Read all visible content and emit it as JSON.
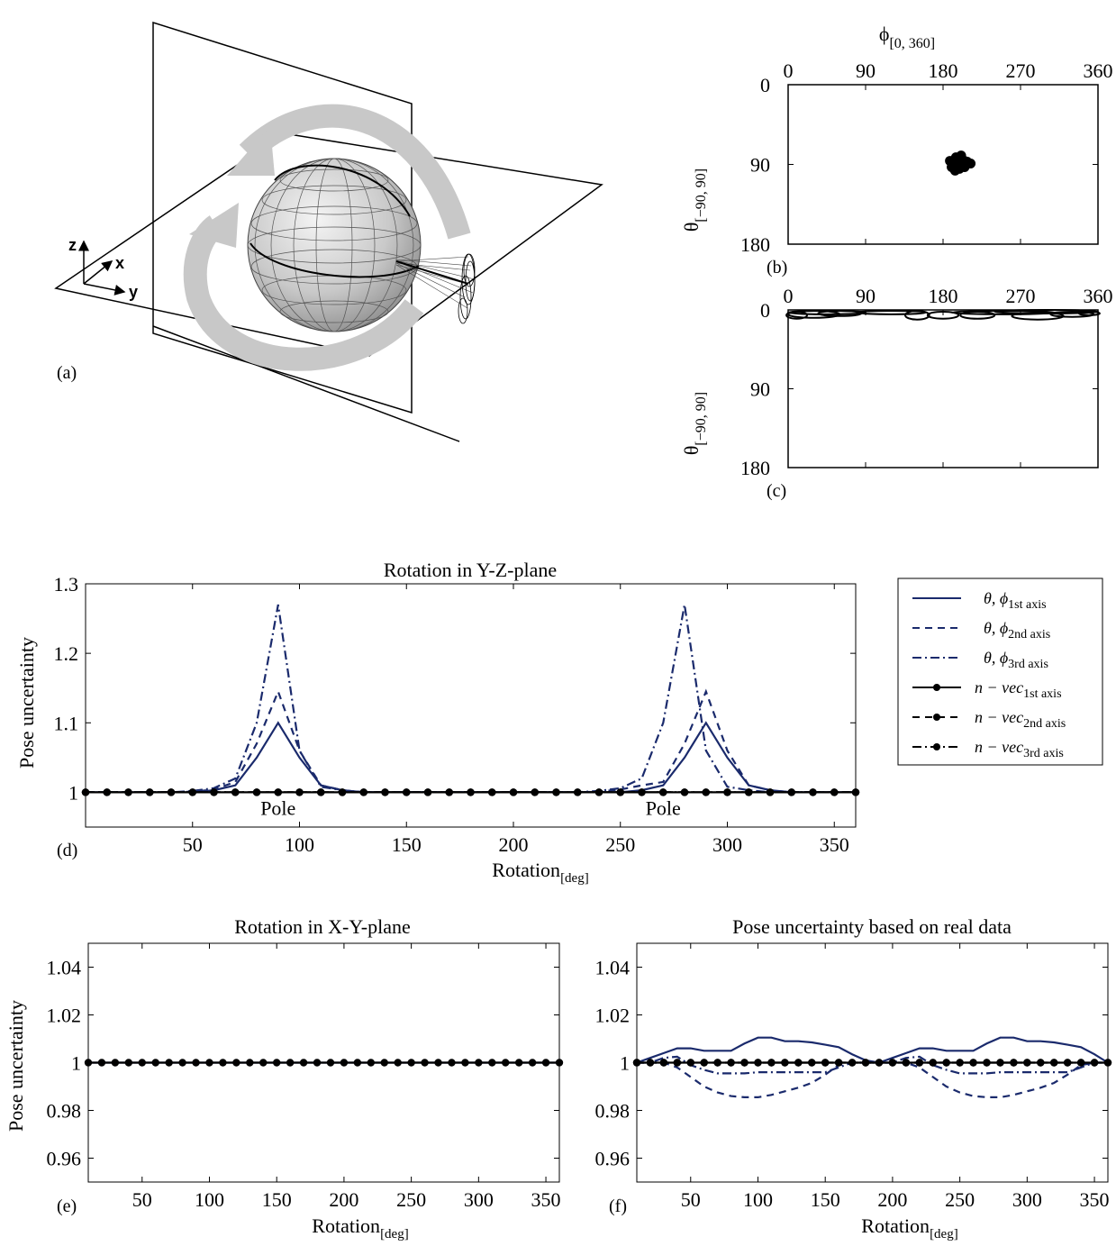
{
  "panel_labels": {
    "a": "(a)",
    "b": "(b)",
    "c": "(c)",
    "d": "(d)",
    "e": "(e)",
    "f": "(f)"
  },
  "illustration": {
    "axis_x": "x",
    "axis_y": "y",
    "axis_z": "z"
  },
  "colors": {
    "navy": "#1a2a6c",
    "black": "#000000",
    "arrow_gray": "#c8c8c8",
    "sphere_gray": "#cfcfcf"
  },
  "chart_data": [
    {
      "id": "b",
      "type": "scatter",
      "xlabel": "ϕ",
      "xlabel_sub": "[0, 360]",
      "ylabel": "θ",
      "ylabel_sub": "[−90, 90]",
      "xlim": [
        0,
        360
      ],
      "ylim": [
        0,
        180
      ],
      "y_inverted": true,
      "xticks": [
        "0",
        "90",
        "180",
        "270",
        "360"
      ],
      "yticks": [
        "0",
        "90",
        "180"
      ],
      "points": [
        [
          195,
          82
        ],
        [
          200,
          84
        ],
        [
          205,
          86
        ],
        [
          198,
          88
        ],
        [
          192,
          88
        ],
        [
          203,
          90
        ],
        [
          208,
          87
        ],
        [
          196,
          92
        ],
        [
          190,
          93
        ],
        [
          212,
          89
        ],
        [
          199,
          95
        ],
        [
          194,
          97
        ],
        [
          205,
          93
        ],
        [
          201,
          80
        ],
        [
          188,
          86
        ]
      ]
    },
    {
      "id": "c",
      "type": "scatter",
      "ylabel": "θ",
      "ylabel_sub": "[−90, 90]",
      "xlim": [
        0,
        360
      ],
      "ylim": [
        0,
        180
      ],
      "y_inverted": true,
      "xticks": [
        "0",
        "90",
        "180",
        "270",
        "360"
      ],
      "yticks": [
        "0",
        "90",
        "180"
      ],
      "ellipses": [
        [
          30,
          5,
          30,
          4
        ],
        [
          60,
          4,
          25,
          3
        ],
        [
          10,
          6,
          12,
          4
        ],
        [
          150,
          6,
          14,
          5
        ],
        [
          180,
          6,
          18,
          4
        ],
        [
          220,
          6,
          20,
          4
        ],
        [
          290,
          7,
          30,
          4
        ],
        [
          330,
          5,
          25,
          3
        ],
        [
          350,
          4,
          12,
          2
        ],
        [
          120,
          3,
          40,
          2
        ],
        [
          250,
          3,
          60,
          2
        ],
        [
          45,
          3,
          45,
          2
        ],
        [
          300,
          2,
          60,
          2
        ]
      ]
    },
    {
      "id": "d",
      "type": "line",
      "title": "Rotation in Y-Z-plane",
      "xlabel": "Rotation",
      "xlabel_sub": "[deg]",
      "ylabel": "Pose uncertainty",
      "xlim": [
        0,
        360
      ],
      "ylim": [
        0.95,
        1.3
      ],
      "xticks": [
        50,
        100,
        150,
        200,
        250,
        300,
        350
      ],
      "yticks": [
        {
          "v": 1,
          "t": "1"
        },
        {
          "v": 1.1,
          "t": "1.1"
        },
        {
          "v": 1.2,
          "t": "1.2"
        },
        {
          "v": 1.3,
          "t": "1.3"
        }
      ],
      "annotations": [
        {
          "x": 90,
          "y": 0.975,
          "text": "Pole"
        },
        {
          "x": 270,
          "y": 0.975,
          "text": "Pole"
        }
      ],
      "x": [
        0,
        10,
        20,
        30,
        40,
        50,
        60,
        70,
        80,
        90,
        100,
        110,
        120,
        130,
        140,
        150,
        160,
        170,
        180,
        190,
        200,
        210,
        220,
        230,
        240,
        250,
        260,
        270,
        280,
        290,
        300,
        310,
        320,
        330,
        340,
        350,
        360
      ],
      "series": [
        {
          "name": "θ, ϕ",
          "name_sub": "1st axis",
          "style": "solid",
          "color": "#1a2a6c",
          "values": [
            1,
            1,
            1,
            1,
            1,
            1,
            1.003,
            1.01,
            1.05,
            1.1,
            1.05,
            1.01,
            1.003,
            1,
            1,
            1,
            1,
            1,
            1,
            1,
            1,
            1,
            1,
            1,
            1,
            1,
            1.003,
            1.01,
            1.05,
            1.1,
            1.05,
            1.01,
            1.003,
            1,
            1,
            1,
            1
          ]
        },
        {
          "name": "θ, ϕ",
          "name_sub": "2nd axis",
          "style": "dashed",
          "color": "#1a2a6c",
          "values": [
            1,
            1,
            1,
            1,
            1,
            1.001,
            1.004,
            1.015,
            1.07,
            1.145,
            1.06,
            1.01,
            1.003,
            1,
            1,
            1,
            1,
            1,
            1,
            1,
            1,
            1,
            1,
            1,
            1.001,
            1.004,
            1.01,
            1.015,
            1.07,
            1.145,
            1.06,
            1.01,
            1.003,
            1,
            1,
            1,
            1
          ]
        },
        {
          "name": "θ, ϕ",
          "name_sub": "3rd axis",
          "style": "dashdot",
          "color": "#1a2a6c",
          "values": [
            1,
            1,
            1,
            1,
            1,
            1.002,
            1.006,
            1.02,
            1.1,
            1.27,
            1.06,
            1.008,
            1.003,
            1,
            1,
            1,
            1,
            1,
            1,
            1,
            1,
            1,
            1,
            1,
            1.002,
            1.006,
            1.02,
            1.1,
            1.27,
            1.06,
            1.008,
            1.003,
            1,
            1,
            1,
            1,
            1
          ]
        },
        {
          "name": "n − vec",
          "name_sub": "1st axis",
          "style": "solid-marker",
          "color": "#000000",
          "values": [
            1,
            1,
            1,
            1,
            1,
            1,
            1,
            1,
            1,
            1,
            1,
            1,
            1,
            1,
            1,
            1,
            1,
            1,
            1,
            1,
            1,
            1,
            1,
            1,
            1,
            1,
            1,
            1,
            1,
            1,
            1,
            1,
            1,
            1,
            1,
            1,
            1
          ]
        },
        {
          "name": "n − vec",
          "name_sub": "2nd axis",
          "style": "dashed-marker",
          "color": "#000000",
          "values": [
            1,
            1,
            1,
            1,
            1,
            1,
            1,
            1,
            1,
            1,
            1,
            1,
            1,
            1,
            1,
            1,
            1,
            1,
            1,
            1,
            1,
            1,
            1,
            1,
            1,
            1,
            1,
            1,
            1,
            1,
            1,
            1,
            1,
            1,
            1,
            1,
            1
          ]
        },
        {
          "name": "n − vec",
          "name_sub": "3rd axis",
          "style": "dashdot-marker",
          "color": "#000000",
          "values": [
            1,
            1,
            1,
            1,
            1,
            1,
            1,
            1,
            1,
            1,
            1,
            1,
            1,
            1,
            1,
            1,
            1,
            1,
            1,
            1,
            1,
            1,
            1,
            1,
            1,
            1,
            1,
            1,
            1,
            1,
            1,
            1,
            1,
            1,
            1,
            1,
            1
          ]
        }
      ]
    },
    {
      "id": "e",
      "type": "line",
      "title": "Rotation in X-Y-plane",
      "xlabel": "Rotation",
      "xlabel_sub": "[deg]",
      "ylabel": "Pose uncertainty",
      "xlim": [
        10,
        360
      ],
      "ylim": [
        0.95,
        1.05
      ],
      "xticks": [
        50,
        100,
        150,
        200,
        250,
        300,
        350
      ],
      "yticks": [
        {
          "v": 0.96,
          "t": "0.96"
        },
        {
          "v": 0.98,
          "t": "0.98"
        },
        {
          "v": 1,
          "t": "1"
        },
        {
          "v": 1.02,
          "t": "1.02"
        },
        {
          "v": 1.04,
          "t": "1.04"
        }
      ],
      "x": [
        10,
        20,
        30,
        40,
        50,
        60,
        70,
        80,
        90,
        100,
        110,
        120,
        130,
        140,
        150,
        160,
        170,
        180,
        190,
        200,
        210,
        220,
        230,
        240,
        250,
        260,
        270,
        280,
        290,
        300,
        310,
        320,
        330,
        340,
        350,
        360
      ],
      "series": [
        {
          "style": "solid",
          "color": "#1a2a6c",
          "values": [
            1,
            1,
            1,
            1,
            1,
            1,
            1,
            1,
            1,
            1,
            1,
            1,
            1,
            1,
            1,
            1,
            1,
            1,
            1,
            1,
            1,
            1,
            1,
            1,
            1,
            1,
            1,
            1,
            1,
            1,
            1,
            1,
            1,
            1,
            1,
            1
          ]
        },
        {
          "style": "solid-marker",
          "color": "#000000",
          "values": [
            1,
            1,
            1,
            1,
            1,
            1,
            1,
            1,
            1,
            1,
            1,
            1,
            1,
            1,
            1,
            1,
            1,
            1,
            1,
            1,
            1,
            1,
            1,
            1,
            1,
            1,
            1,
            1,
            1,
            1,
            1,
            1,
            1,
            1,
            1,
            1
          ]
        }
      ]
    },
    {
      "id": "f",
      "type": "line",
      "title": "Pose uncertainty based on real data",
      "xlabel": "Rotation",
      "xlabel_sub": "[deg]",
      "xlim": [
        10,
        360
      ],
      "ylim": [
        0.95,
        1.05
      ],
      "xticks": [
        50,
        100,
        150,
        200,
        250,
        300,
        350
      ],
      "yticks": [
        {
          "v": 0.96,
          "t": "0.96"
        },
        {
          "v": 0.98,
          "t": "0.98"
        },
        {
          "v": 1,
          "t": "1"
        },
        {
          "v": 1.02,
          "t": "1.02"
        },
        {
          "v": 1.04,
          "t": "1.04"
        }
      ],
      "x": [
        10,
        20,
        30,
        40,
        50,
        60,
        70,
        80,
        90,
        100,
        110,
        120,
        130,
        140,
        150,
        160,
        170,
        180,
        190,
        200,
        210,
        220,
        230,
        240,
        250,
        260,
        270,
        280,
        290,
        300,
        310,
        320,
        330,
        340,
        350,
        360
      ],
      "series": [
        {
          "style": "solid",
          "color": "#1a2a6c",
          "values": [
            1,
            1.002,
            1.004,
            1.006,
            1.006,
            1.005,
            1.005,
            1.005,
            1.008,
            1.0105,
            1.0105,
            1.009,
            1.009,
            1.0085,
            1.0075,
            1.0065,
            1.0035,
            1.001,
            1,
            1.002,
            1.004,
            1.006,
            1.006,
            1.005,
            1.005,
            1.005,
            1.008,
            1.0105,
            1.0105,
            1.009,
            1.009,
            1.0085,
            1.0075,
            1.0065,
            1.0035,
            1
          ]
        },
        {
          "style": "dashed",
          "color": "#1a2a6c",
          "values": [
            1,
            1,
            1,
            0.998,
            0.994,
            0.99,
            0.9875,
            0.986,
            0.9855,
            0.9855,
            0.9865,
            0.988,
            0.9895,
            0.9915,
            0.995,
            0.999,
            1,
            1,
            1,
            1,
            1,
            0.998,
            0.994,
            0.99,
            0.9875,
            0.986,
            0.9855,
            0.9855,
            0.9865,
            0.988,
            0.9895,
            0.9915,
            0.995,
            0.999,
            1,
            1
          ]
        },
        {
          "style": "dashdot",
          "color": "#1a2a6c",
          "values": [
            1,
            1,
            1.002,
            1.0025,
            0.999,
            0.997,
            0.9955,
            0.9955,
            0.9955,
            0.996,
            0.996,
            0.996,
            0.996,
            0.996,
            0.996,
            0.998,
            1,
            1,
            1,
            1,
            1.002,
            1.0025,
            0.999,
            0.997,
            0.9955,
            0.9955,
            0.9955,
            0.996,
            0.996,
            0.996,
            0.996,
            0.996,
            0.996,
            0.998,
            1,
            1
          ]
        },
        {
          "style": "solid-marker",
          "color": "#000000",
          "values": [
            1,
            1,
            1,
            1,
            1,
            1,
            1,
            1,
            1,
            1,
            1,
            1,
            1,
            1,
            1,
            1,
            1,
            1,
            1,
            1,
            1,
            1,
            1,
            1,
            1,
            1,
            1,
            1,
            1,
            1,
            1,
            1,
            1,
            1,
            1,
            1
          ]
        },
        {
          "style": "dashed-marker",
          "color": "#000000",
          "values": [
            1,
            1,
            1,
            1,
            1,
            1,
            1,
            1,
            1,
            1,
            1,
            1,
            1,
            1,
            1,
            1,
            1,
            1,
            1,
            1,
            1,
            1,
            1,
            1,
            1,
            1,
            1,
            1,
            1,
            1,
            1,
            1,
            1,
            1,
            1,
            1
          ]
        }
      ]
    }
  ]
}
